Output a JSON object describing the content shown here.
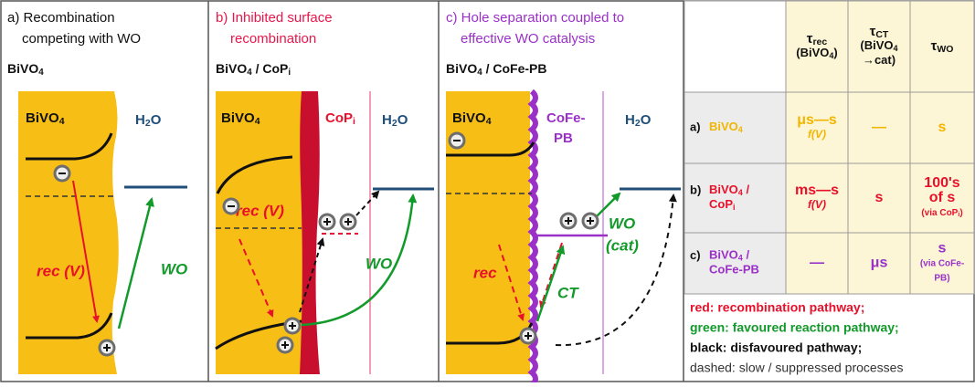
{
  "panels": [
    {
      "title": [
        "a) Recombination",
        "competing with WO"
      ],
      "heading": [
        "BiVO",
        {
          "sub": "4"
        }
      ],
      "semiconductor": [
        "BiVO",
        {
          "sub": "4"
        }
      ],
      "electrolyte": [
        "H",
        {
          "sub": "2"
        },
        "O"
      ],
      "recombination": "rec (V)",
      "reaction": [
        "WO"
      ]
    },
    {
      "title": [
        "b) Inhibited surface",
        "recombination"
      ],
      "heading": [
        "BiVO",
        {
          "sub": "4"
        },
        " / CoP",
        {
          "sub": "i"
        }
      ],
      "semiconductor": [
        "BiVO",
        {
          "sub": "4"
        }
      ],
      "catalyst": [
        [
          "CoP",
          {
            "sub": "i"
          }
        ]
      ],
      "electrolyte": [
        "H",
        {
          "sub": "2"
        },
        "O"
      ],
      "recombination": "rec (V)",
      "reaction": [
        "WO"
      ]
    },
    {
      "title": [
        "c) Hole separation coupled to",
        "effective WO catalysis"
      ],
      "heading": [
        "BiVO",
        {
          "sub": "4"
        },
        " / CoFe-PB"
      ],
      "semiconductor": [
        "BiVO",
        {
          "sub": "4"
        }
      ],
      "catalyst": [
        [
          "CoFe-"
        ],
        [
          "PB"
        ]
      ],
      "electrolyte": [
        "H",
        {
          "sub": "2"
        },
        "O"
      ],
      "recombination": "rec",
      "reaction": [
        "WO",
        "(cat)"
      ],
      "transfer": "CT"
    }
  ],
  "table": {
    "columns": [
      [
        [
          "τ",
          {
            "sub": "rec"
          }
        ],
        [
          "(BiVO",
          {
            "sub": "4"
          },
          ")"
        ]
      ],
      [
        [
          "τ",
          {
            "sub": "CT"
          }
        ],
        [
          "(BiVO",
          {
            "sub": "4"
          }
        ],
        [
          "→cat)"
        ]
      ],
      [
        [
          "τ",
          {
            "sub": "WO"
          }
        ]
      ]
    ],
    "rows": [
      {
        "prefix": "a)",
        "name": [
          [
            "BiVO",
            {
              "sub": "4"
            }
          ]
        ],
        "color": "#f2b600",
        "cells": [
          [
            [
              "μs—s"
            ],
            [
              "f(V)"
            ]
          ],
          [
            [
              "—"
            ]
          ],
          [
            [
              "s"
            ]
          ]
        ]
      },
      {
        "prefix": "b)",
        "name": [
          [
            "BiVO",
            {
              "sub": "4"
            },
            " /"
          ],
          [
            "CoP",
            {
              "sub": "i"
            }
          ]
        ],
        "color": "#e8102a",
        "cells": [
          [
            [
              "ms—s"
            ],
            [
              "f(V)"
            ]
          ],
          [
            [
              "s"
            ]
          ],
          [
            [
              "100's"
            ],
            [
              "of s"
            ],
            [
              "(via CoP",
              {
                "sub": "i"
              },
              ")"
            ]
          ]
        ]
      },
      {
        "prefix": "c)",
        "name": [
          [
            "BiVO",
            {
              "sub": "4"
            },
            " /"
          ],
          [
            "CoFe-PB"
          ]
        ],
        "color": "#9b30c8",
        "cells": [
          [
            [
              "—"
            ]
          ],
          [
            [
              "μs"
            ]
          ],
          [
            [
              "s"
            ],
            [
              "(via CoFe-"
            ],
            [
              "PB)"
            ]
          ]
        ]
      }
    ],
    "legend": [
      {
        "text": "red: recombination pathway;",
        "color": "#e8102a"
      },
      {
        "text": "green: favoured reaction pathway;",
        "color": "#129a2a"
      },
      {
        "text": "black: disfavoured pathway;",
        "color": "#111111"
      },
      {
        "text": "dashed: slow / suppressed processes",
        "color": "#333333"
      }
    ]
  }
}
